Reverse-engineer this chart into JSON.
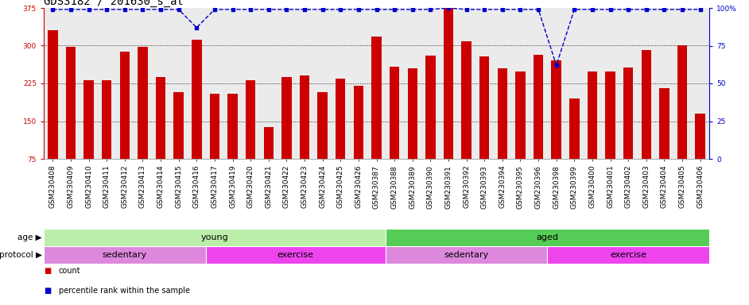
{
  "title": "GDS3182 / 201630_s_at",
  "categories": [
    "GSM230408",
    "GSM230409",
    "GSM230410",
    "GSM230411",
    "GSM230412",
    "GSM230413",
    "GSM230414",
    "GSM230415",
    "GSM230416",
    "GSM230417",
    "GSM230419",
    "GSM230420",
    "GSM230421",
    "GSM230422",
    "GSM230423",
    "GSM230424",
    "GSM230425",
    "GSM230426",
    "GSM230387",
    "GSM230388",
    "GSM230389",
    "GSM230390",
    "GSM230391",
    "GSM230392",
    "GSM230393",
    "GSM230394",
    "GSM230395",
    "GSM230396",
    "GSM230398",
    "GSM230399",
    "GSM230400",
    "GSM230401",
    "GSM230402",
    "GSM230403",
    "GSM230404",
    "GSM230405",
    "GSM230406"
  ],
  "bar_values": [
    330,
    298,
    232,
    232,
    288,
    297,
    238,
    208,
    312,
    205,
    205,
    232,
    138,
    238,
    240,
    207,
    235,
    221,
    318,
    258,
    255,
    280,
    375,
    308,
    278,
    255,
    248,
    282,
    271,
    195,
    248,
    248,
    257,
    292,
    215,
    300,
    165
  ],
  "percentile_values": [
    99,
    99,
    99,
    99,
    99,
    99,
    99,
    99,
    87,
    99,
    99,
    99,
    99,
    99,
    99,
    99,
    99,
    99,
    99,
    99,
    99,
    99,
    100,
    99,
    99,
    99,
    99,
    99,
    62,
    99,
    99,
    99,
    99,
    99,
    99,
    99,
    99
  ],
  "bar_color": "#cc0000",
  "percentile_color": "#0000cc",
  "ylim_left": [
    75,
    375
  ],
  "ylim_right": [
    0,
    100
  ],
  "yticks_left": [
    75,
    150,
    225,
    300,
    375
  ],
  "yticks_right": [
    0,
    25,
    50,
    75,
    100
  ],
  "age_groups": [
    {
      "label": "young",
      "start": 0,
      "end": 19,
      "color": "#bbeeaa"
    },
    {
      "label": "aged",
      "start": 19,
      "end": 37,
      "color": "#55cc55"
    }
  ],
  "protocol_groups": [
    {
      "label": "sedentary",
      "start": 0,
      "end": 9,
      "color": "#dd88dd"
    },
    {
      "label": "exercise",
      "start": 9,
      "end": 19,
      "color": "#ee44ee"
    },
    {
      "label": "sedentary",
      "start": 19,
      "end": 28,
      "color": "#dd88dd"
    },
    {
      "label": "exercise",
      "start": 28,
      "end": 37,
      "color": "#ee44ee"
    }
  ],
  "bg_color": "#ebebeb",
  "title_fontsize": 10,
  "tick_fontsize": 6.5,
  "group_fontsize": 8,
  "legend_items": [
    {
      "label": "count",
      "color": "#cc0000"
    },
    {
      "label": "percentile rank within the sample",
      "color": "#0000cc"
    }
  ]
}
